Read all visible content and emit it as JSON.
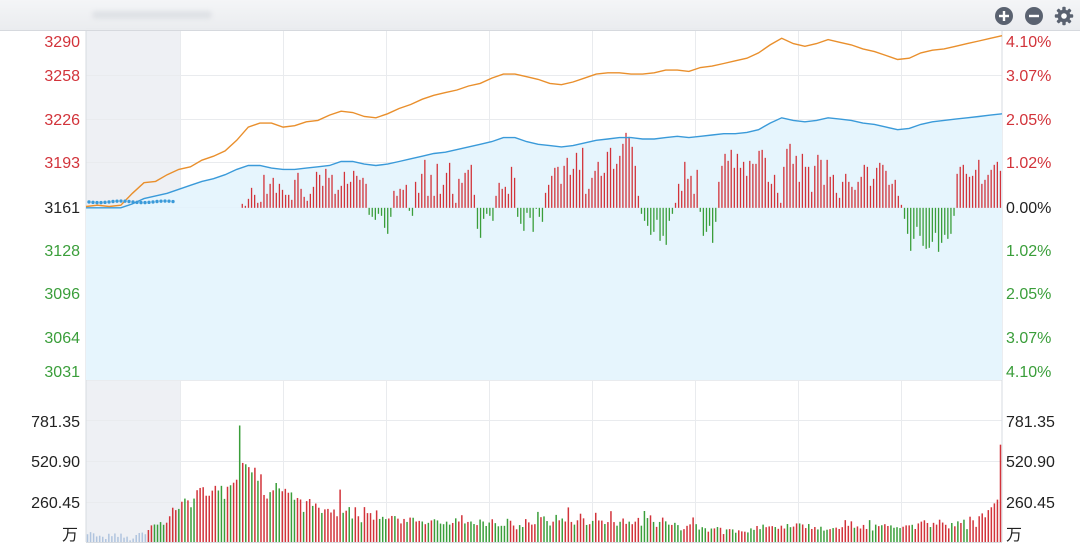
{
  "colors": {
    "up": "#d2333a",
    "down": "#3a9e3a",
    "index_line": "#e98f2c",
    "avg_line": "#3a9ad9",
    "area_fill": "#e6f5fd",
    "grid": "#e9ebee",
    "auction_shade": "#eef0f4"
  },
  "toolbar": {
    "icons": [
      "zoom-in-icon",
      "zoom-out-icon",
      "gear-icon"
    ]
  },
  "chart_data": {
    "type": "line",
    "title": "",
    "base_price": 3161,
    "price_axis_left": [
      "3290",
      "3258",
      "3226",
      "3193",
      "3161",
      "3128",
      "3096",
      "3064",
      "3031"
    ],
    "price_axis_right": [
      "4.10%",
      "3.07%",
      "2.05%",
      "1.02%",
      "0.00%",
      "1.02%",
      "2.05%",
      "3.07%",
      "4.10%"
    ],
    "ylim": [
      3031,
      3290
    ],
    "volume_axis_left": [
      "781.35",
      "520.90",
      "260.45"
    ],
    "volume_axis_right": [
      "781.35",
      "520.90",
      "260.45"
    ],
    "volume_unit": "万",
    "volume_ylim": [
      0,
      781.35
    ],
    "series": [
      {
        "role": "index",
        "values": [
          3162,
          3163,
          3162,
          3163,
          3172,
          3180,
          3181,
          3186,
          3190,
          3192,
          3197,
          3200,
          3204,
          3212,
          3222,
          3225,
          3225,
          3222,
          3223,
          3226,
          3227,
          3231,
          3234,
          3233,
          3230,
          3229,
          3232,
          3236,
          3239,
          3243,
          3246,
          3248,
          3250,
          3253,
          3255,
          3259,
          3262,
          3262,
          3260,
          3258,
          3255,
          3254,
          3256,
          3259,
          3262,
          3263,
          3263,
          3262,
          3262,
          3263,
          3265,
          3265,
          3264,
          3267,
          3268,
          3270,
          3272,
          3274,
          3278,
          3284,
          3289,
          3285,
          3283,
          3285,
          3288,
          3286,
          3284,
          3281,
          3279,
          3276,
          3273,
          3274,
          3278,
          3280,
          3281,
          3283,
          3285,
          3287,
          3289,
          3291
        ]
      },
      {
        "role": "average",
        "values": [
          3161,
          3161,
          3161,
          3161,
          3164,
          3168,
          3170,
          3172,
          3175,
          3178,
          3181,
          3183,
          3186,
          3190,
          3193,
          3193,
          3191,
          3190,
          3190,
          3191,
          3192,
          3193,
          3196,
          3196,
          3194,
          3193,
          3194,
          3196,
          3198,
          3200,
          3202,
          3203,
          3205,
          3207,
          3209,
          3211,
          3214,
          3214,
          3211,
          3209,
          3208,
          3207,
          3208,
          3210,
          3212,
          3213,
          3214,
          3214,
          3213,
          3213,
          3214,
          3215,
          3214,
          3215,
          3216,
          3217,
          3217,
          3218,
          3220,
          3225,
          3229,
          3227,
          3226,
          3227,
          3229,
          3228,
          3227,
          3225,
          3224,
          3222,
          3220,
          3221,
          3224,
          3226,
          3227,
          3228,
          3229,
          3230,
          3231,
          3232
        ]
      }
    ],
    "delta_bars": [
      0,
      0,
      0,
      0,
      0,
      0,
      0,
      0,
      0,
      0,
      0,
      0,
      0,
      0,
      0,
      0,
      0,
      0,
      0,
      0,
      0,
      0,
      0,
      0,
      0,
      0,
      0,
      0,
      0,
      0,
      0,
      0,
      0,
      0,
      0,
      0,
      0,
      0,
      0,
      0,
      0,
      0,
      0,
      0,
      0,
      0,
      0,
      0,
      0,
      0,
      4,
      2,
      9,
      20,
      13,
      5,
      6,
      33,
      14,
      24,
      30,
      15,
      24,
      18,
      13,
      13,
      8,
      28,
      35,
      19,
      11,
      7,
      14,
      21,
      36,
      33,
      22,
      39,
      30,
      33,
      14,
      18,
      22,
      36,
      24,
      26,
      37,
      32,
      28,
      30,
      24,
      -7,
      -9,
      -12,
      -6,
      -8,
      -20,
      -26,
      -9,
      17,
      12,
      19,
      18,
      23,
      -3,
      -8,
      26,
      15,
      34,
      48,
      12,
      33,
      12,
      44,
      14,
      23,
      35,
      45,
      14,
      5,
      29,
      25,
      35,
      38,
      43,
      13,
      -21,
      -30,
      -11,
      -6,
      -8,
      -13,
      12,
      25,
      19,
      21,
      14,
      41,
      30,
      -9,
      -16,
      -23,
      -5,
      -10,
      -24,
      -1,
      -9,
      -14,
      15,
      23,
      32,
      40,
      41,
      24,
      42,
      50,
      33,
      39,
      55,
      38,
      60,
      14,
      19,
      30,
      37,
      46,
      32,
      35,
      56,
      60,
      39,
      44,
      52,
      64,
      75,
      71,
      61,
      42,
      12,
      -6,
      -13,
      -18,
      -27,
      -24,
      -12,
      -33,
      -28,
      -37,
      -13,
      -6,
      5,
      24,
      17,
      46,
      29,
      32,
      14,
      38,
      -4,
      -28,
      -24,
      -18,
      -35,
      -14,
      26,
      42,
      54,
      47,
      58,
      40,
      54,
      40,
      46,
      32,
      47,
      44,
      44,
      57,
      58,
      50,
      26,
      24,
      33,
      15,
      5,
      41,
      59,
      64,
      44,
      52,
      26,
      54,
      41,
      41,
      16,
      42,
      53,
      48,
      23,
      48,
      31,
      33,
      15,
      10,
      26,
      34,
      26,
      21,
      18,
      26,
      31,
      43,
      41,
      22,
      29,
      40,
      45,
      43,
      37,
      23,
      24,
      28,
      12,
      3,
      -11,
      -26,
      -43,
      -31,
      -19,
      -28,
      -38,
      -41,
      -40,
      -34,
      -25,
      -44,
      -35,
      -27,
      -31,
      -26,
      -8,
      34,
      41,
      43,
      34,
      31,
      32,
      38,
      48,
      24,
      28,
      33,
      38,
      43,
      46,
      37
    ],
    "volume": [
      [
        52,
        0
      ],
      [
        66,
        0
      ],
      [
        58,
        0
      ],
      [
        37,
        0
      ],
      [
        42,
        0
      ],
      [
        35,
        0
      ],
      [
        20,
        0
      ],
      [
        55,
        0
      ],
      [
        39,
        0
      ],
      [
        57,
        0
      ],
      [
        34,
        0
      ],
      [
        56,
        0
      ],
      [
        29,
        0
      ],
      [
        36,
        0
      ],
      [
        11,
        0
      ],
      [
        23,
        0
      ],
      [
        47,
        0
      ],
      [
        60,
        0
      ],
      [
        63,
        0
      ],
      [
        52,
        0
      ],
      [
        80,
        1
      ],
      [
        111,
        1
      ],
      [
        117,
        0
      ],
      [
        116,
        0
      ],
      [
        133,
        0
      ],
      [
        115,
        0
      ],
      [
        129,
        1
      ],
      [
        172,
        1
      ],
      [
        229,
        1
      ],
      [
        213,
        1
      ],
      [
        221,
        0
      ],
      [
        269,
        1
      ],
      [
        290,
        0
      ],
      [
        278,
        1
      ],
      [
        232,
        0
      ],
      [
        290,
        0
      ],
      [
        346,
        1
      ],
      [
        361,
        1
      ],
      [
        366,
        1
      ],
      [
        309,
        1
      ],
      [
        309,
        1
      ],
      [
        343,
        1
      ],
      [
        375,
        1
      ],
      [
        344,
        0
      ],
      [
        375,
        0
      ],
      [
        288,
        0
      ],
      [
        369,
        1
      ],
      [
        379,
        0
      ],
      [
        396,
        1
      ],
      [
        416,
        1
      ],
      [
        778,
        0
      ],
      [
        528,
        1
      ],
      [
        519,
        0
      ],
      [
        500,
        1
      ],
      [
        465,
        0
      ],
      [
        496,
        1
      ],
      [
        409,
        0
      ],
      [
        452,
        1
      ],
      [
        314,
        1
      ],
      [
        290,
        1
      ],
      [
        333,
        0
      ],
      [
        345,
        1
      ],
      [
        394,
        0
      ],
      [
        358,
        0
      ],
      [
        339,
        1
      ],
      [
        355,
        1
      ],
      [
        329,
        1
      ],
      [
        331,
        0
      ],
      [
        282,
        0
      ],
      [
        294,
        1
      ],
      [
        284,
        1
      ],
      [
        201,
        0
      ],
      [
        273,
        1
      ],
      [
        287,
        1
      ],
      [
        241,
        0
      ],
      [
        257,
        1
      ],
      [
        229,
        1
      ],
      [
        194,
        0
      ],
      [
        218,
        1
      ],
      [
        221,
        1
      ],
      [
        197,
        1
      ],
      [
        217,
        1
      ],
      [
        172,
        1
      ],
      [
        350,
        1
      ],
      [
        195,
        0
      ],
      [
        209,
        1
      ],
      [
        233,
        0
      ],
      [
        157,
        0
      ],
      [
        232,
        1
      ],
      [
        172,
        1
      ],
      [
        132,
        0
      ],
      [
        233,
        1
      ],
      [
        193,
        1
      ],
      [
        193,
        1
      ],
      [
        149,
        1
      ],
      [
        211,
        1
      ],
      [
        154,
        0
      ],
      [
        168,
        0
      ],
      [
        153,
        0
      ],
      [
        157,
        1
      ],
      [
        174,
        1
      ],
      [
        173,
        0
      ],
      [
        156,
        1
      ],
      [
        124,
        1
      ],
      [
        154,
        1
      ],
      [
        134,
        0
      ],
      [
        163,
        1
      ],
      [
        162,
        0
      ],
      [
        137,
        1
      ],
      [
        141,
        1
      ],
      [
        137,
        0
      ],
      [
        119,
        1
      ],
      [
        128,
        0
      ],
      [
        144,
        1
      ],
      [
        152,
        0
      ],
      [
        144,
        0
      ],
      [
        123,
        0
      ],
      [
        119,
        0
      ],
      [
        136,
        0
      ],
      [
        116,
        0
      ],
      [
        127,
        1
      ],
      [
        158,
        0
      ],
      [
        137,
        1
      ],
      [
        179,
        1
      ],
      [
        124,
        0
      ],
      [
        134,
        1
      ],
      [
        137,
        0
      ],
      [
        120,
        0
      ],
      [
        113,
        1
      ],
      [
        150,
        0
      ],
      [
        137,
        0
      ],
      [
        107,
        0
      ],
      [
        130,
        0
      ],
      [
        152,
        1
      ],
      [
        126,
        0
      ],
      [
        105,
        0
      ],
      [
        108,
        0
      ],
      [
        108,
        0
      ],
      [
        155,
        0
      ],
      [
        142,
        1
      ],
      [
        110,
        1
      ],
      [
        85,
        1
      ],
      [
        113,
        0
      ],
      [
        100,
        0
      ],
      [
        153,
        1
      ],
      [
        131,
        1
      ],
      [
        116,
        1
      ],
      [
        119,
        1
      ],
      [
        201,
        0
      ],
      [
        166,
        1
      ],
      [
        171,
        0
      ],
      [
        140,
        0
      ],
      [
        110,
        0
      ],
      [
        136,
        1
      ],
      [
        181,
        0
      ],
      [
        145,
        1
      ],
      [
        157,
        0
      ],
      [
        137,
        1
      ],
      [
        231,
        1
      ],
      [
        134,
        1
      ],
      [
        116,
        0
      ],
      [
        145,
        1
      ],
      [
        189,
        1
      ],
      [
        158,
        1
      ],
      [
        114,
        0
      ],
      [
        119,
        1
      ],
      [
        141,
        0
      ],
      [
        195,
        1
      ],
      [
        144,
        1
      ],
      [
        143,
        1
      ],
      [
        120,
        0
      ],
      [
        133,
        1
      ],
      [
        206,
        1
      ],
      [
        133,
        1
      ],
      [
        109,
        0
      ],
      [
        135,
        0
      ],
      [
        157,
        1
      ],
      [
        121,
        1
      ],
      [
        136,
        0
      ],
      [
        119,
        1
      ],
      [
        136,
        1
      ],
      [
        161,
        1
      ],
      [
        109,
        0
      ],
      [
        207,
        0
      ],
      [
        160,
        0
      ],
      [
        178,
        1
      ],
      [
        134,
        0
      ],
      [
        101,
        1
      ],
      [
        134,
        0
      ],
      [
        163,
        1
      ],
      [
        138,
        0
      ],
      [
        116,
        0
      ],
      [
        114,
        1
      ],
      [
        128,
        0
      ],
      [
        113,
        0
      ],
      [
        78,
        0
      ],
      [
        86,
        1
      ],
      [
        108,
        1
      ],
      [
        118,
        1
      ],
      [
        164,
        1
      ],
      [
        119,
        0
      ],
      [
        83,
        0
      ],
      [
        99,
        0
      ],
      [
        92,
        0
      ],
      [
        69,
        1
      ],
      [
        90,
        0
      ],
      [
        91,
        1
      ],
      [
        100,
        0
      ],
      [
        95,
        1
      ],
      [
        53,
        1
      ],
      [
        84,
        0
      ],
      [
        86,
        1
      ],
      [
        84,
        0
      ],
      [
        62,
        0
      ],
      [
        78,
        1
      ],
      [
        71,
        1
      ],
      [
        69,
        1
      ],
      [
        64,
        0
      ],
      [
        91,
        0
      ],
      [
        81,
        0
      ],
      [
        107,
        1
      ],
      [
        86,
        0
      ],
      [
        116,
        0
      ],
      [
        99,
        1
      ],
      [
        104,
        1
      ],
      [
        106,
        1
      ],
      [
        100,
        0
      ],
      [
        88,
        1
      ],
      [
        109,
        1
      ],
      [
        90,
        1
      ],
      [
        120,
        0
      ],
      [
        99,
        0
      ],
      [
        103,
        1
      ],
      [
        124,
        1
      ],
      [
        124,
        0
      ],
      [
        117,
        1
      ],
      [
        93,
        1
      ],
      [
        120,
        0
      ],
      [
        87,
        1
      ],
      [
        100,
        1
      ],
      [
        84,
        0
      ],
      [
        102,
        0
      ],
      [
        76,
        0
      ],
      [
        82,
        0
      ],
      [
        86,
        1
      ],
      [
        93,
        0
      ],
      [
        96,
        1
      ],
      [
        87,
        1
      ],
      [
        99,
        1
      ],
      [
        146,
        1
      ],
      [
        108,
        1
      ],
      [
        138,
        1
      ],
      [
        95,
        0
      ],
      [
        104,
        1
      ],
      [
        90,
        1
      ],
      [
        114,
        1
      ],
      [
        87,
        1
      ],
      [
        146,
        0
      ],
      [
        77,
        0
      ],
      [
        116,
        0
      ],
      [
        106,
        1
      ],
      [
        112,
        0
      ],
      [
        119,
        1
      ],
      [
        107,
        1
      ],
      [
        111,
        0
      ],
      [
        95,
        0
      ],
      [
        99,
        0
      ],
      [
        93,
        0
      ],
      [
        102,
        1
      ],
      [
        111,
        1
      ],
      [
        111,
        1
      ],
      [
        115,
        0
      ],
      [
        87,
        1
      ],
      [
        124,
        1
      ],
      [
        136,
        1
      ],
      [
        145,
        1
      ],
      [
        127,
        1
      ],
      [
        100,
        0
      ],
      [
        128,
        1
      ],
      [
        116,
        1
      ],
      [
        149,
        1
      ],
      [
        130,
        1
      ],
      [
        115,
        1
      ],
      [
        91,
        1
      ],
      [
        127,
        0
      ],
      [
        105,
        1
      ],
      [
        138,
        0
      ],
      [
        127,
        1
      ],
      [
        149,
        0
      ],
      [
        86,
        0
      ],
      [
        169,
        1
      ],
      [
        145,
        1
      ],
      [
        101,
        1
      ],
      [
        172,
        1
      ],
      [
        191,
        1
      ],
      [
        165,
        1
      ],
      [
        213,
        1
      ],
      [
        232,
        1
      ],
      [
        258,
        1
      ],
      [
        283,
        1
      ],
      [
        650,
        1
      ]
    ]
  }
}
